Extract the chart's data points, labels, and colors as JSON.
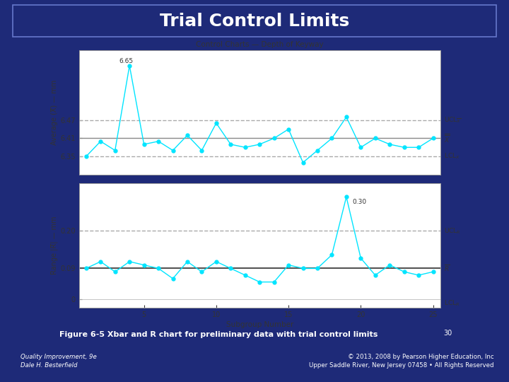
{
  "title": "Trial Control Limits",
  "chart_title": "Control Charts — Depth of Keyway",
  "xbar_data": [
    6.35,
    6.4,
    6.37,
    6.65,
    6.39,
    6.4,
    6.37,
    6.42,
    6.37,
    6.46,
    6.39,
    6.38,
    6.39,
    6.41,
    6.44,
    6.33,
    6.37,
    6.41,
    6.48,
    6.38,
    6.41,
    6.39,
    6.38,
    6.38,
    6.41
  ],
  "r_data": [
    0.09,
    0.11,
    0.08,
    0.11,
    0.1,
    0.09,
    0.06,
    0.11,
    0.08,
    0.11,
    0.09,
    0.07,
    0.05,
    0.05,
    0.1,
    0.09,
    0.09,
    0.13,
    0.3,
    0.12,
    0.07,
    0.1,
    0.08,
    0.07,
    0.08
  ],
  "subgroups": [
    1,
    2,
    3,
    4,
    5,
    6,
    7,
    8,
    9,
    10,
    11,
    12,
    13,
    14,
    15,
    16,
    17,
    18,
    19,
    20,
    21,
    22,
    23,
    24,
    25
  ],
  "UCL_xbar": 6.47,
  "LCL_xbar": 6.35,
  "Xbar_bar": 6.41,
  "UCL_R": 0.2,
  "LCL_R": 0.0,
  "R_bar": 0.09,
  "xbar_ylim": [
    6.29,
    6.7
  ],
  "r_ylim": [
    -0.025,
    0.34
  ],
  "bg_color": "#1e2a78",
  "title_bg_color": "#2d3b9e",
  "plot_bg": "white",
  "line_color": "#00e5ff",
  "center_line_color": "#888888",
  "dashed_line_color": "#aaaaaa",
  "solid_R_line_color": "#555555",
  "text_color": "#222222",
  "xlabel": "Subgroup Number",
  "xbar_ylabel": "Average (X̅) — mm",
  "r_ylabel": "Range |R̅| — mm",
  "figure_caption": "Figure 6-5 Xbar and R chart for preliminary data with trial control limits",
  "footer_left": "Quality Improvement, 9e\nDale H. Besterfield",
  "footer_right": "© 2013, 2008 by Pearson Higher Education, Inc\nUpper Saddle River, New Jersey 07458 • All Rights Reserved",
  "page_number": "30"
}
